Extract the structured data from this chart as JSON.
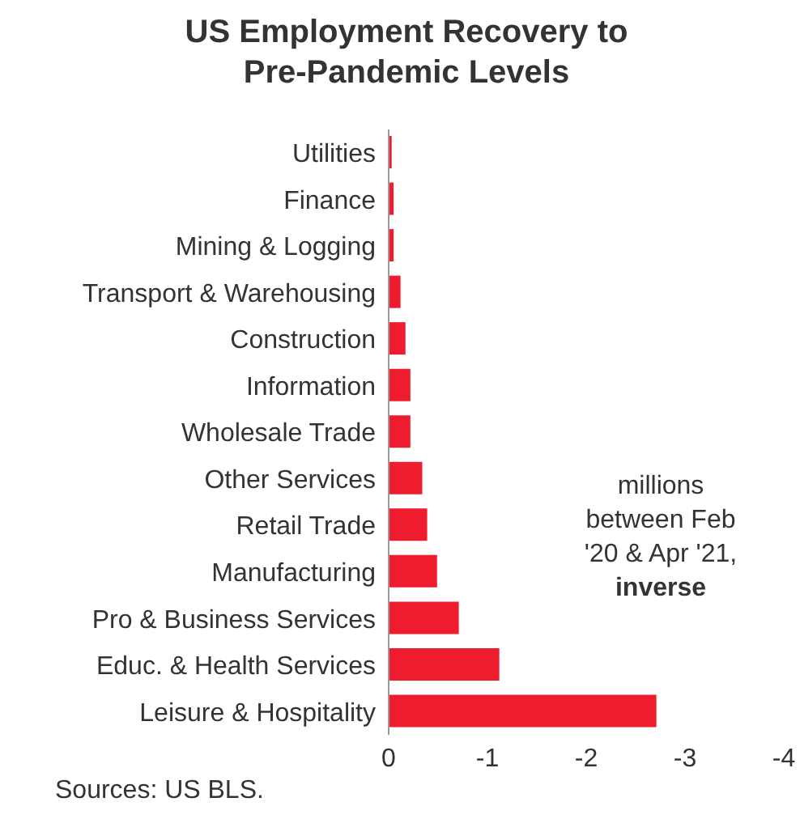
{
  "chart_data": {
    "type": "bar",
    "orientation": "horizontal",
    "title": "US Employment  Recovery to Pre-Pandemic Levels",
    "categories": [
      "Utilities",
      "Finance",
      "Mining & Logging",
      "Transport & Warehousing",
      "Construction",
      "Information",
      "Wholesale Trade",
      "Other Services",
      "Retail Trade",
      "Manufacturing",
      "Pro & Business Services",
      "Educ. & Health Services",
      "Leisure & Hospitality"
    ],
    "values": [
      -0.03,
      -0.05,
      -0.05,
      -0.12,
      -0.17,
      -0.22,
      -0.22,
      -0.34,
      -0.39,
      -0.49,
      -0.71,
      -1.12,
      -2.71
    ],
    "color": "#ee1c2e",
    "xlim": [
      0,
      -4
    ],
    "xticks": [
      0,
      -1,
      -2,
      -3,
      -4
    ],
    "grid": false,
    "legend": false,
    "annotations": [
      "millions between Feb '20 & Apr '21,",
      "inverse",
      "Sources: US BLS."
    ]
  }
}
